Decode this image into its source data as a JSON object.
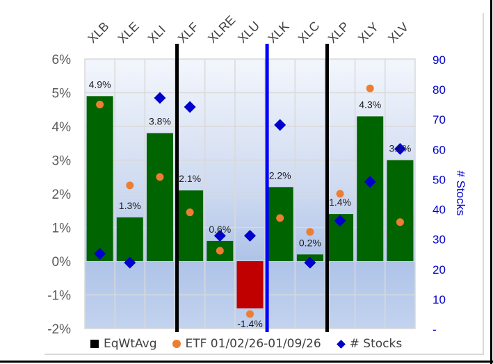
{
  "chart_data": {
    "type": "bar",
    "title": "",
    "categories": [
      "XLB",
      "XLE",
      "XLI",
      "XLF",
      "XLRE",
      "XLU",
      "XLK",
      "XLC",
      "XLP",
      "XLY",
      "XLV"
    ],
    "series": [
      {
        "name": "EqWtAvg",
        "kind": "bar",
        "axis": "left",
        "values": [
          4.9,
          1.3,
          3.8,
          2.1,
          0.6,
          -1.4,
          2.2,
          0.2,
          1.4,
          4.3,
          3.0
        ],
        "data_labels": [
          "4.9%",
          "1.3%",
          "3.8%",
          "2.1%",
          "0.6%",
          "-1.4%",
          "2.2%",
          "0.2%",
          "1.4%",
          "4.3%",
          "3.0%"
        ]
      },
      {
        "name": "ETF 01/02/26-01/09/26",
        "kind": "scatter-dot",
        "axis": "left",
        "values": [
          4.65,
          2.25,
          2.5,
          1.45,
          0.31,
          -1.57,
          1.28,
          0.87,
          2.0,
          5.13,
          1.16
        ]
      },
      {
        "name": "# Stocks",
        "kind": "scatter-diamond",
        "axis": "right",
        "values": [
          25,
          22,
          77,
          74,
          31,
          31,
          68,
          22,
          36,
          49,
          60
        ]
      }
    ],
    "ylim": [
      -2,
      6
    ],
    "y_ticks": [
      "6%",
      "5%",
      "4%",
      "3%",
      "2%",
      "1%",
      "0%",
      "-1%",
      "-2%"
    ],
    "y2lim": [
      0,
      90
    ],
    "y2_ticks": [
      "90",
      "80",
      "70",
      "60",
      "50",
      "40",
      "30",
      "20",
      "10",
      "-"
    ],
    "y2label": "# Stocks",
    "xlabel": "",
    "ylabel": "",
    "grid": true,
    "legend_position": "bottom",
    "legend": [
      "EqWtAvg",
      "ETF 01/02/26-01/09/26",
      "# Stocks"
    ],
    "separators": [
      {
        "after_category": "XLI",
        "color": "#000000"
      },
      {
        "after_category": "XLU",
        "color": "#0000ff"
      },
      {
        "after_category": "XLC",
        "color": "#000000"
      }
    ],
    "colors": {
      "bar_positive": "#006400",
      "bar_negative": "#c00000",
      "etf_dot": "#ed7d31",
      "stocks_diamond": "#0000cc",
      "right_axis_text": "#0000cc",
      "left_axis_text": "#595959"
    }
  }
}
